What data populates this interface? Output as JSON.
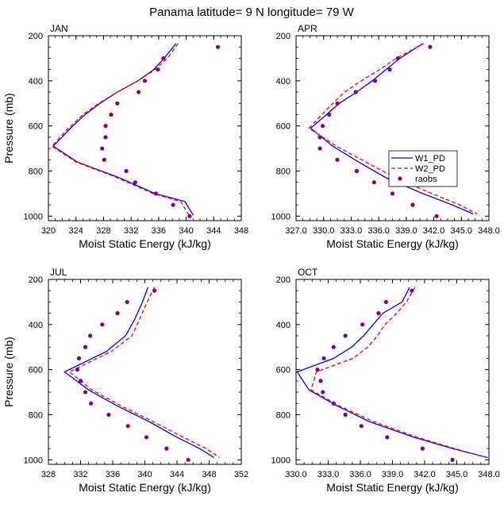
{
  "chart_data": {
    "type": "line",
    "title": "Panama  latitude= 9 N longitude= 79 W",
    "ylabel": "Pressure (mb)",
    "xlabel": "Moist Static Energy (kJ/kg)",
    "legend": {
      "placement": "inside-right of APR panel",
      "entries": [
        {
          "name": "W1_PD",
          "style": "solid",
          "color": "#0000ff"
        },
        {
          "name": "W2_PD",
          "style": "dashed",
          "color": "#ff0000"
        },
        {
          "name": "raobs",
          "style": "markers",
          "color": "#800080"
        }
      ]
    },
    "panels": [
      {
        "name": "JAN",
        "xlim": [
          320,
          348
        ],
        "xticks": [
          320,
          324,
          328,
          332,
          336,
          340,
          344,
          348
        ],
        "xtick_labels": [
          "320",
          "324",
          "328",
          "332",
          "336",
          "340",
          "344",
          "348"
        ],
        "ylim": [
          1000,
          200
        ],
        "yticks": [
          200,
          400,
          600,
          800,
          1000
        ],
        "ytick_labels": [
          "200",
          "400",
          "600",
          "800",
          "1000"
        ],
        "series": [
          {
            "name": "W1_PD",
            "pressure": [
              235,
              300,
              350,
              400,
              450,
              500,
              550,
              610,
              690,
              760,
              830,
              900,
              935,
              975,
              995
            ],
            "values": [
              338.5,
              336.8,
              335.3,
              333.0,
              330.0,
              327.5,
              325.3,
              323.2,
              320.7,
              324.2,
              330.3,
              335.5,
              339.8,
              340.6,
              341.0
            ]
          },
          {
            "name": "W2_PD",
            "pressure": [
              235,
              300,
              350,
              400,
              450,
              500,
              550,
              610,
              690,
              760,
              830,
              900,
              935,
              975,
              995
            ],
            "values": [
              338.8,
              337.3,
              335.5,
              333.0,
              330.0,
              327.3,
              325.0,
              322.9,
              320.5,
              324.0,
              330.0,
              335.2,
              339.2,
              340.0,
              340.4
            ]
          },
          {
            "name": "raobs",
            "pressure": [
              250,
              300,
              350,
              400,
              450,
              500,
              550,
              600,
              650,
              700,
              750,
              800,
              850,
              900,
              950,
              1000
            ],
            "values": [
              344.6,
              336.7,
              335.9,
              334.0,
              333.1,
              330.0,
              329.1,
              328.3,
              328.3,
              327.8,
              328.1,
              331.3,
              332.6,
              335.6,
              338.1,
              340.5
            ]
          }
        ]
      },
      {
        "name": "APR",
        "xlim": [
          327,
          348
        ],
        "xticks": [
          327,
          330,
          333,
          336,
          339,
          342,
          345,
          348
        ],
        "xtick_labels": [
          "327.0",
          "330.0",
          "333.0",
          "336.0",
          "339.0",
          "342.0",
          "345.0",
          "348.0"
        ],
        "ylim": [
          1000,
          200
        ],
        "yticks": [
          200,
          400,
          600,
          800,
          1000
        ],
        "ytick_labels": [
          "200",
          "400",
          "600",
          "800",
          "1000"
        ],
        "series": [
          {
            "name": "W1_PD",
            "pressure": [
              235,
              300,
              350,
              400,
              450,
              500,
              550,
              610,
              690,
              760,
              830,
              900,
              950,
              990
            ],
            "values": [
              340.8,
              338.3,
              336.8,
              335.3,
              333.6,
              331.7,
              330.3,
              328.6,
              331.0,
              333.8,
              336.8,
              340.8,
              344.0,
              346.3
            ]
          },
          {
            "name": "W2_PD",
            "pressure": [
              235,
              300,
              350,
              400,
              450,
              500,
              550,
              610,
              690,
              760,
              830,
              900,
              950,
              990
            ],
            "values": [
              340.9,
              337.9,
              336.1,
              334.1,
              332.3,
              331.0,
              329.8,
              328.4,
              331.4,
              334.6,
              337.8,
              341.8,
              344.8,
              346.7
            ]
          },
          {
            "name": "raobs",
            "pressure": [
              250,
              300,
              350,
              400,
              450,
              500,
              550,
              600,
              650,
              700,
              750,
              800,
              850,
              900,
              950,
              1000
            ],
            "values": [
              341.6,
              338.1,
              337.2,
              335.6,
              333.5,
              331.5,
              330.6,
              329.9,
              329.6,
              329.6,
              331.5,
              333.6,
              335.5,
              337.5,
              339.7,
              342.3
            ]
          }
        ]
      },
      {
        "name": "JUL",
        "xlim": [
          328,
          352
        ],
        "xticks": [
          328,
          332,
          336,
          340,
          344,
          348,
          352
        ],
        "xtick_labels": [
          "328",
          "332",
          "336",
          "340",
          "344",
          "348",
          "352"
        ],
        "ylim": [
          1000,
          200
        ],
        "yticks": [
          200,
          400,
          600,
          800,
          1000
        ],
        "ytick_labels": [
          "200",
          "400",
          "600",
          "800",
          "1000"
        ],
        "series": [
          {
            "name": "W1_PD",
            "pressure": [
              235,
              300,
              380,
              450,
              520,
              610,
              690,
              760,
              830,
              900,
              950,
              990
            ],
            "values": [
              340.4,
              339.7,
              338.7,
              337.6,
              335.2,
              330.0,
              333.0,
              336.5,
              340.5,
              344.0,
              346.8,
              348.6
            ]
          },
          {
            "name": "W2_PD",
            "pressure": [
              235,
              300,
              380,
              450,
              520,
              610,
              690,
              760,
              830,
              900,
              950,
              990
            ],
            "values": [
              341.2,
              340.3,
              339.3,
              338.4,
              335.8,
              330.6,
              333.4,
              337.0,
              341.0,
              344.8,
              347.6,
              349.3
            ]
          },
          {
            "name": "raobs",
            "pressure": [
              250,
              300,
              350,
              400,
              450,
              500,
              550,
              600,
              650,
              700,
              750,
              800,
              850,
              900,
              950,
              1000
            ],
            "values": [
              341.2,
              337.8,
              336.6,
              334.7,
              333.2,
              332.6,
              331.8,
              331.6,
              332.0,
              332.6,
              333.3,
              335.5,
              337.9,
              340.2,
              342.7,
              345.4
            ]
          }
        ]
      },
      {
        "name": "OCT",
        "xlim": [
          330,
          348
        ],
        "xticks": [
          330,
          333,
          336,
          339,
          342,
          345,
          348
        ],
        "xtick_labels": [
          "330.0",
          "333.0",
          "336.0",
          "339.0",
          "342.0",
          "345.0",
          "348.0"
        ],
        "ylim": [
          1000,
          200
        ],
        "yticks": [
          200,
          400,
          600,
          800,
          1000
        ],
        "ytick_labels": [
          "200",
          "400",
          "600",
          "800",
          "1000"
        ],
        "series": [
          {
            "name": "W1_PD",
            "pressure": [
              235,
              300,
              350,
              400,
              450,
              500,
              550,
              610,
              690,
              760,
              830,
              900,
              950,
              990
            ],
            "values": [
              340.6,
              339.9,
              338.1,
              337.2,
              336.3,
              335.2,
              333.5,
              330.1,
              331.2,
              333.8,
              336.8,
              341.0,
              344.6,
              347.9
            ]
          },
          {
            "name": "W2_PD",
            "pressure": [
              235,
              300,
              350,
              400,
              450,
              500,
              550,
              610,
              690,
              760,
              830,
              900,
              950,
              990
            ],
            "values": [
              341.1,
              340.3,
              339.4,
              338.3,
              337.6,
              336.7,
              335.3,
              331.9,
              331.4,
              334.0,
              337.2,
              341.3,
              344.8,
              347.8
            ]
          },
          {
            "name": "raobs",
            "pressure": [
              250,
              300,
              350,
              400,
              450,
              500,
              550,
              600,
              650,
              700,
              750,
              800,
              850,
              900,
              950,
              1000
            ],
            "values": [
              340.8,
              338.4,
              337.7,
              336.2,
              334.6,
              333.5,
              332.6,
              332.0,
              332.3,
              332.5,
              333.5,
              334.6,
              336.1,
              338.5,
              341.8,
              344.6
            ]
          }
        ]
      }
    ]
  }
}
